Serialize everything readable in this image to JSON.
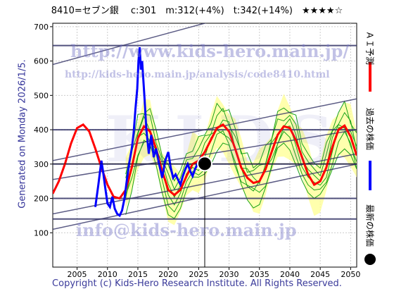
{
  "header": {
    "title": "8410=セブン銀　 c:301　m:312(+4%)　t:342(+14%)　★★★★☆"
  },
  "side_text": "Generated on Monday 2026/1/5.",
  "footer": "Copyright (c) Kids-Hero Research Institute. All Rights Reserved.",
  "watermarks": {
    "url_big": "http://www.kids-hero.main.jp/",
    "url_small": "http://kids-hero.main.jp/analysis/code8410.html",
    "email": "info@kids-hero.main.jp",
    "logo": "KIDS"
  },
  "legend": {
    "ai": "ＡＩ予測",
    "past": "過去の株価",
    "latest": "最新の株価"
  },
  "colors": {
    "ai": "#ff0000",
    "past": "#0000ff",
    "latest": "#000000",
    "band_fill": "#ffff99",
    "band_lines": "#1aa31a",
    "channel_lines": "#333366"
  },
  "chart_data": {
    "type": "line",
    "xlim": [
      2001,
      2051
    ],
    "ylim": [
      0,
      710
    ],
    "x_ticks": [
      2005,
      2010,
      2015,
      2020,
      2025,
      2030,
      2035,
      2040,
      2045,
      2050
    ],
    "y_ticks": [
      100,
      200,
      300,
      400,
      500,
      600,
      700
    ],
    "grid": true,
    "latest_point": {
      "x": 2026.0,
      "y": 301
    },
    "horizontal_lines": [
      140,
      200,
      300,
      400,
      645
    ],
    "trend_lines": [
      {
        "x": [
          2001,
          2051
        ],
        "y": [
          110,
          300
        ]
      },
      {
        "x": [
          2001,
          2051
        ],
        "y": [
          155,
          330
        ]
      },
      {
        "x": [
          2001,
          2051
        ],
        "y": [
          255,
          400
        ]
      },
      {
        "x": [
          2001,
          2051
        ],
        "y": [
          310,
          490
        ]
      },
      {
        "x": [
          2001,
          2051
        ],
        "y": [
          590,
          830
        ]
      }
    ],
    "series": [
      {
        "name": "ＡＩ予測",
        "x": [
          2001.0,
          2002.0,
          2003.0,
          2004.0,
          2005.0,
          2006.0,
          2007.0,
          2008.0,
          2009.0,
          2010.0,
          2011.0,
          2012.0,
          2013.0,
          2014.0,
          2015.0,
          2016.0,
          2017.0,
          2018.0,
          2019.0,
          2020.0,
          2021.0,
          2022.0,
          2023.0,
          2024.0,
          2025.0,
          2026.0,
          2027.0,
          2028.0,
          2029.0,
          2030.0,
          2031.0,
          2032.0,
          2033.0,
          2034.0,
          2035.0,
          2036.0,
          2037.0,
          2038.0,
          2039.0,
          2040.0,
          2041.0,
          2042.0,
          2043.0,
          2044.0,
          2045.0,
          2046.0,
          2047.0,
          2048.0,
          2049.0,
          2050.0,
          2051.0
        ],
        "values": [
          214,
          250,
          300,
          360,
          405,
          415,
          395,
          345,
          290,
          240,
          205,
          200,
          225,
          290,
          375,
          410,
          395,
          345,
          280,
          225,
          210,
          225,
          265,
          300,
          310,
          335,
          370,
          405,
          415,
          395,
          345,
          290,
          260,
          245,
          250,
          285,
          335,
          385,
          410,
          405,
          370,
          320,
          270,
          240,
          250,
          290,
          350,
          400,
          412,
          380,
          325
        ]
      },
      {
        "name": "過去の株価",
        "x": [
          2008.0,
          2008.5,
          2009.0,
          2009.3,
          2009.6,
          2010.0,
          2010.4,
          2010.8,
          2011.2,
          2011.6,
          2012.0,
          2012.4,
          2012.8,
          2013.2,
          2013.6,
          2014.0,
          2014.3,
          2014.6,
          2014.9,
          2015.1,
          2015.3,
          2015.5,
          2015.7,
          2015.9,
          2016.1,
          2016.4,
          2016.8,
          2017.2,
          2017.6,
          2018.0,
          2018.5,
          2019.0,
          2019.5,
          2020.0,
          2020.4,
          2020.8,
          2021.2,
          2021.6,
          2022.0,
          2022.4,
          2022.8,
          2023.2,
          2023.6,
          2024.0,
          2024.4,
          2024.8,
          2025.2,
          2025.6,
          2026.0
        ],
        "values": [
          175,
          240,
          310,
          275,
          235,
          185,
          175,
          205,
          170,
          155,
          150,
          165,
          200,
          255,
          305,
          345,
          390,
          460,
          520,
          600,
          640,
          575,
          600,
          545,
          490,
          400,
          330,
          385,
          320,
          345,
          300,
          260,
          310,
          335,
          290,
          260,
          270,
          255,
          240,
          265,
          285,
          300,
          280,
          265,
          285,
          300,
          315,
          300,
          301
        ]
      }
    ]
  }
}
